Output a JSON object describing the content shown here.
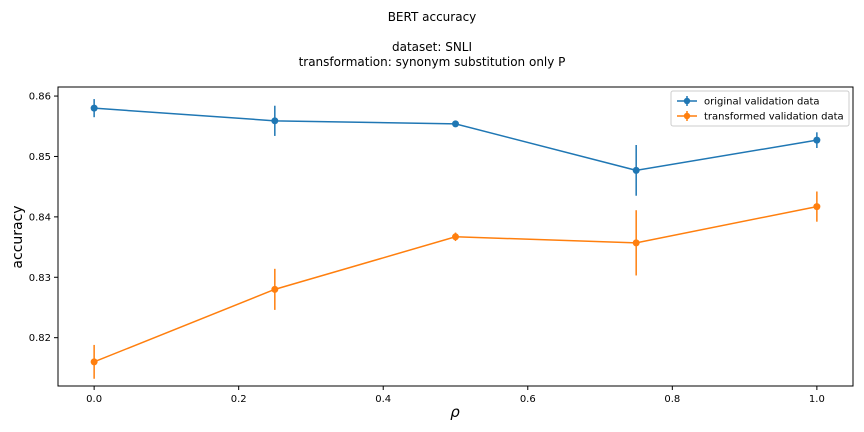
{
  "chart_data": {
    "type": "line",
    "title": "BERT accuracy",
    "subtitle_lines": [
      "dataset: SNLI",
      "transformation: synonym substitution only P"
    ],
    "xlabel": "ρ",
    "ylabel": "accuracy",
    "x": [
      0.0,
      0.25,
      0.5,
      0.75,
      1.0
    ],
    "xlim": [
      -0.05,
      1.05
    ],
    "ylim": [
      0.812,
      0.8615
    ],
    "xticks": [
      "0.0",
      "0.2",
      "0.4",
      "0.6",
      "0.8",
      "1.0"
    ],
    "xtick_values": [
      0.0,
      0.2,
      0.4,
      0.6,
      0.8,
      1.0
    ],
    "yticks": [
      "0.82",
      "0.83",
      "0.84",
      "0.85",
      "0.86"
    ],
    "ytick_values": [
      0.82,
      0.83,
      0.84,
      0.85,
      0.86
    ],
    "grid": false,
    "legend_position": "top-right",
    "series": [
      {
        "name": "original validation data",
        "color": "#1f77b4",
        "values": [
          0.858,
          0.8559,
          0.8554,
          0.8477,
          0.8527
        ],
        "errors": [
          0.0015,
          0.0025,
          0.0002,
          0.0042,
          0.0013
        ]
      },
      {
        "name": "transformed validation data",
        "color": "#ff7f0e",
        "values": [
          0.816,
          0.828,
          0.8367,
          0.8357,
          0.8417
        ],
        "errors": [
          0.0028,
          0.0034,
          0.0007,
          0.0054,
          0.0025
        ]
      }
    ]
  }
}
